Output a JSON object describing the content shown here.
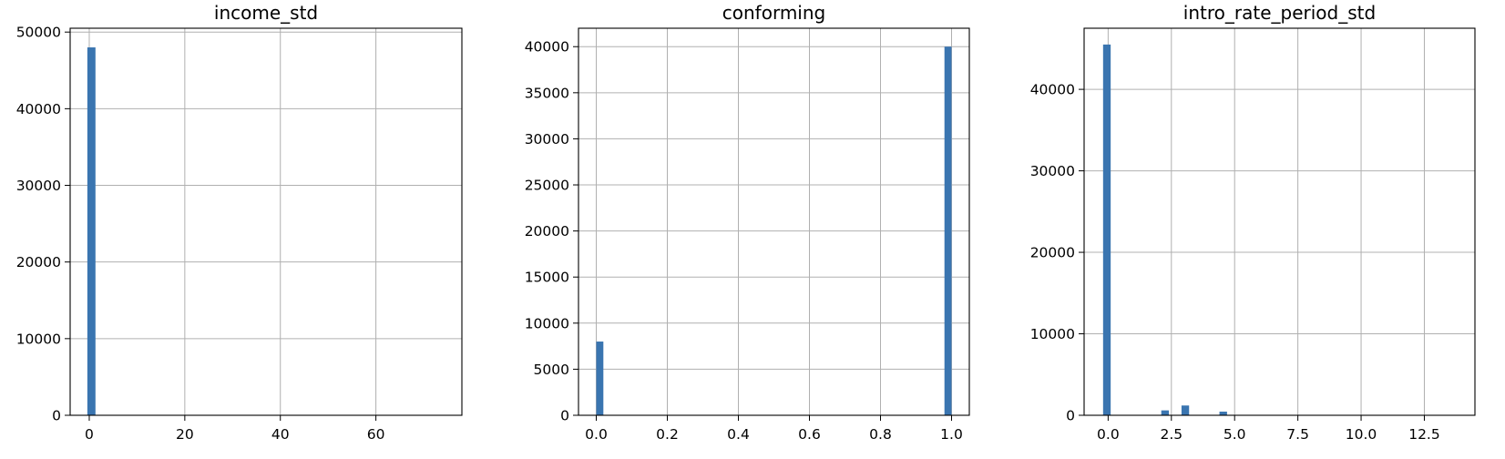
{
  "chart_data": [
    {
      "type": "bar",
      "title": "income_std",
      "xlim": [
        -4,
        78
      ],
      "ylim": [
        0,
        50500
      ],
      "xticks": [
        0,
        20,
        40,
        60
      ],
      "xtick_labels": [
        "0",
        "20",
        "40",
        "60"
      ],
      "yticks": [
        0,
        10000,
        20000,
        30000,
        40000,
        50000
      ],
      "ytick_labels": [
        "0",
        "10000",
        "20000",
        "30000",
        "40000",
        "50000"
      ],
      "grid": true,
      "bar_color": "#3a75b0",
      "bins": [
        {
          "x0": -0.4,
          "x1": 1.3,
          "value": 48000
        }
      ]
    },
    {
      "type": "bar",
      "title": "conforming",
      "xlim": [
        -0.05,
        1.05
      ],
      "ylim": [
        0,
        42000
      ],
      "xticks": [
        0.0,
        0.2,
        0.4,
        0.6,
        0.8,
        1.0
      ],
      "xtick_labels": [
        "0.0",
        "0.2",
        "0.4",
        "0.6",
        "0.8",
        "1.0"
      ],
      "yticks": [
        0,
        5000,
        10000,
        15000,
        20000,
        25000,
        30000,
        35000,
        40000
      ],
      "ytick_labels": [
        "0",
        "5000",
        "10000",
        "15000",
        "20000",
        "25000",
        "30000",
        "35000",
        "40000"
      ],
      "grid": true,
      "bar_color": "#3a75b0",
      "bins": [
        {
          "x0": 0.0,
          "x1": 0.02,
          "value": 8000
        },
        {
          "x0": 0.98,
          "x1": 1.0,
          "value": 40000
        }
      ]
    },
    {
      "type": "bar",
      "title": "intro_rate_period_std",
      "xlim": [
        -0.95,
        14.5
      ],
      "ylim": [
        0,
        47500
      ],
      "xticks": [
        0.0,
        2.5,
        5.0,
        7.5,
        10.0,
        12.5
      ],
      "xtick_labels": [
        "0.0",
        "2.5",
        "5.0",
        "7.5",
        "10.0",
        "12.5"
      ],
      "yticks": [
        0,
        10000,
        20000,
        30000,
        40000
      ],
      "ytick_labels": [
        "0",
        "10000",
        "20000",
        "30000",
        "40000"
      ],
      "grid": true,
      "bar_color": "#3a75b0",
      "bins": [
        {
          "x0": -0.2,
          "x1": 0.1,
          "value": 45500
        },
        {
          "x0": 2.1,
          "x1": 2.4,
          "value": 600
        },
        {
          "x0": 2.9,
          "x1": 3.2,
          "value": 1200
        },
        {
          "x0": 4.4,
          "x1": 4.7,
          "value": 450
        }
      ]
    }
  ]
}
